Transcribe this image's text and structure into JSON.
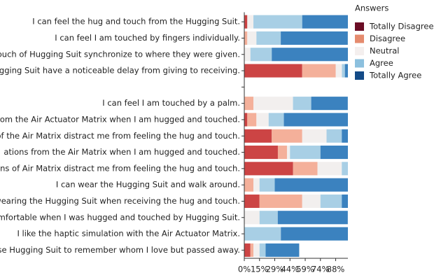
{
  "chart_data": {
    "type": "stacked_barh",
    "legend_title": "Answers",
    "legend_position": "upper right outside",
    "categories": [
      "I can feel the hug and touch from the Hugging Suit.",
      "I can feel I am touched by fingers individually.",
      "g and touch of Hugging Suit synchronize to where they were given.",
      "h of Hugging Suit have a noticeable delay from giving to receiving.",
      null,
      "I can feel I am touched by a palm.",
      "oises from the Air Actuator Matrix when I am hugged and touched.",
      "noises of the Air Matrix distract me from feeling the hug and touch.",
      "ations from the Air Matrix when I am hugged and touched.",
      "vibrations of Air Matrix distract me from feeling the hug and touch.",
      "I can wear the Hugging Suit and walk around.",
      "I was wearing the Hugging Suit when receiving the hug and touch.",
      "feel comfortable when I was hugged and touched by Hugging Suit.",
      "I like the haptic simulation with the Air Actuator Matrix.",
      "ke to use Hugging Suit to remember whom I love but passed away."
    ],
    "series": [
      {
        "name": "Totally Disagree",
        "color": "#cc4444",
        "legend_color": "#6b0d25",
        "values": [
          2.9,
          0,
          0,
          55.9,
          null,
          0,
          2.9,
          26.5,
          32.4,
          47.1,
          0,
          14.7,
          0,
          0,
          5.9
        ]
      },
      {
        "name": "Disagree",
        "color": "#f4b09a",
        "legend_color": "#e58b6e",
        "values": [
          0,
          2.9,
          0,
          32.4,
          null,
          8.8,
          8.8,
          29.4,
          8.8,
          23.5,
          8.8,
          41.2,
          0,
          0,
          2.9
        ]
      },
      {
        "name": "Neutral",
        "color": "#f2efee",
        "legend_color": "#f4efee",
        "values": [
          5.9,
          8.8,
          5.9,
          5.9,
          null,
          38.2,
          11.8,
          23.5,
          2.9,
          23.5,
          5.9,
          17.6,
          14.7,
          0,
          5.9
        ]
      },
      {
        "name": "Agree",
        "color": "#a8cfe5",
        "legend_color": "#8cc0de",
        "values": [
          47.1,
          23.5,
          20.6,
          2.9,
          null,
          17.6,
          14.7,
          14.7,
          29.4,
          5.9,
          14.7,
          20.6,
          17.6,
          35.3,
          5.9
        ]
      },
      {
        "name": "Totally Agree",
        "color": "#3b82bf",
        "legend_color": "#144b87",
        "values": [
          44.1,
          64.7,
          73.5,
          2.9,
          null,
          35.3,
          61.8,
          5.9,
          26.5,
          0,
          70.6,
          5.9,
          67.6,
          64.7,
          32.4
        ]
      }
    ],
    "xlim": [
      0,
      100
    ],
    "xticks": [
      {
        "value": 0,
        "label": "0%"
      },
      {
        "value": 14.7,
        "label": "15%"
      },
      {
        "value": 29.4,
        "label": "29%"
      },
      {
        "value": 44.1,
        "label": "44%"
      },
      {
        "value": 58.8,
        "label": "59%"
      },
      {
        "value": 73.5,
        "label": "74%"
      },
      {
        "value": 88.2,
        "label": "88%"
      }
    ]
  }
}
